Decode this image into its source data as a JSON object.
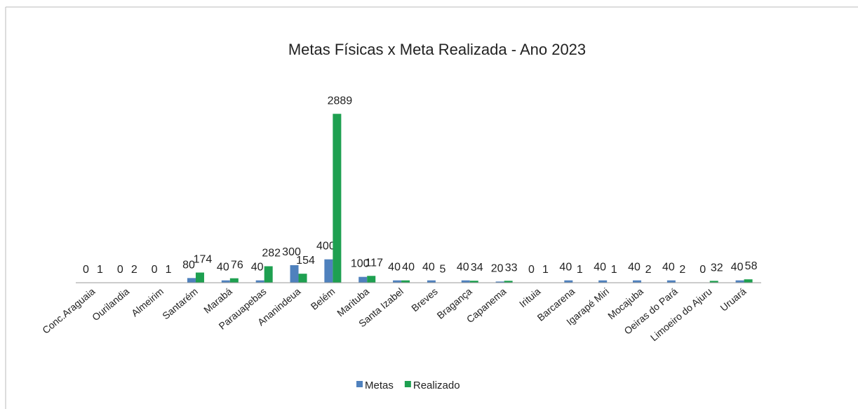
{
  "chart_data": {
    "type": "bar",
    "title": "Metas Físicas  x Meta Realizada - Ano 2023",
    "categories": [
      "Conc.Araguaia",
      "Ourilandia",
      "Almeirim",
      "Santarém",
      "Marabá",
      "Parauapebas",
      "Ananindeua",
      "Belém",
      "Marituba",
      "Santa Izabel",
      "Breves",
      "Bragança",
      "Capanema",
      "Irituia",
      "Barcarena",
      "Igarapé Miri",
      "Mocajuba",
      "Oeiras do Pará",
      "Limoeiro do Ajuru",
      "Uruará"
    ],
    "series": [
      {
        "name": "Metas",
        "color": "#4f81bd",
        "values": [
          0,
          0,
          0,
          80,
          40,
          40,
          300,
          400,
          100,
          40,
          40,
          40,
          20,
          0,
          40,
          40,
          40,
          40,
          0,
          40
        ]
      },
      {
        "name": "Realizado",
        "color": "#1ea050",
        "values": [
          1,
          2,
          1,
          174,
          76,
          282,
          154,
          2889,
          117,
          40,
          5,
          34,
          33,
          1,
          1,
          1,
          2,
          2,
          32,
          58
        ]
      }
    ],
    "ylim": [
      0,
      3000
    ],
    "legend": "bottom"
  }
}
